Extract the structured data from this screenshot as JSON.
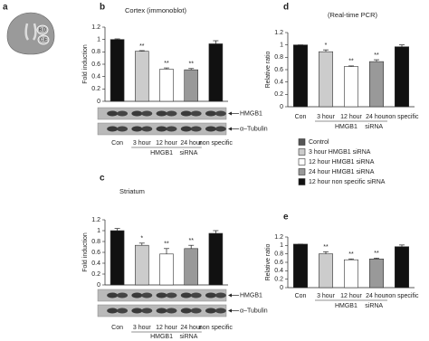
{
  "panel_a": {
    "letter": "a",
    "labels": [
      "B.D",
      "C.E"
    ]
  },
  "legend": {
    "items": [
      {
        "label": "Control",
        "color": "#555555"
      },
      {
        "label": "3 hour HMGB1 siRNA",
        "color": "#cccccc"
      },
      {
        "label": "12 hour HMGB1 siRNA",
        "color": "#ffffff"
      },
      {
        "label": "24 hour HMGB1 siRNA",
        "color": "#999999"
      },
      {
        "label": "12 hour non specific siRNA",
        "color": "#111111"
      }
    ]
  },
  "chart_data": [
    {
      "type": "bar",
      "letter": "b",
      "title": "Cortex (immonoblot)",
      "y_label": "Fold induction",
      "categories": [
        "Con",
        "3 hour",
        "12 hour",
        "24 hour",
        "non specific"
      ],
      "values": [
        1.0,
        0.81,
        0.52,
        0.51,
        0.93
      ],
      "errors": [
        0.01,
        0.01,
        0.02,
        0.02,
        0.05
      ],
      "significance": [
        null,
        "**",
        "**",
        "**",
        null
      ],
      "colors": [
        "#111111",
        "#cccccc",
        "#ffffff",
        "#999999",
        "#111111"
      ],
      "group_labels": [
        "HMGB1",
        "siRNA"
      ],
      "blot_labels": [
        "HMGB1",
        "α–Tubulin"
      ],
      "ylim": [
        0,
        1.2
      ],
      "yticks": [
        0,
        0.2,
        0.4,
        0.6,
        0.8,
        1,
        1.2
      ]
    },
    {
      "type": "bar",
      "letter": "c",
      "title": "Striatum",
      "y_label": "Fold induction",
      "categories": [
        "Con",
        "3 hour",
        "12 hour",
        "24 hour",
        "non specific"
      ],
      "values": [
        1.0,
        0.73,
        0.57,
        0.67,
        0.95
      ],
      "errors": [
        0.04,
        0.04,
        0.1,
        0.06,
        0.05
      ],
      "significance": [
        null,
        "*",
        "**",
        "**",
        null
      ],
      "colors": [
        "#111111",
        "#cccccc",
        "#ffffff",
        "#999999",
        "#111111"
      ],
      "group_labels": [
        "HMGB1",
        "siRNA"
      ],
      "blot_labels": [
        "HMGB1",
        "α–Tubulin"
      ],
      "ylim": [
        0,
        1.2
      ],
      "yticks": [
        0,
        0.2,
        0.4,
        0.6,
        0.8,
        1,
        1.2
      ]
    },
    {
      "type": "bar",
      "letter": "d",
      "title": "(Real-time PCR)",
      "y_label": "Relative ratio",
      "categories": [
        "Con",
        "3 hour",
        "12 hour",
        "24 hour",
        "non specific"
      ],
      "values": [
        1.0,
        0.89,
        0.65,
        0.73,
        0.97
      ],
      "errors": [
        0.0,
        0.03,
        0.01,
        0.03,
        0.03
      ],
      "significance": [
        null,
        "*",
        "**",
        "**",
        null
      ],
      "colors": [
        "#111111",
        "#cccccc",
        "#ffffff",
        "#999999",
        "#111111"
      ],
      "group_labels": [
        "HMGB1",
        "siRNA"
      ],
      "ylim": [
        0,
        1.2
      ],
      "yticks": [
        0,
        0.2,
        0.4,
        0.6,
        0.8,
        1,
        1.2
      ]
    },
    {
      "type": "bar",
      "letter": "e",
      "y_label": "Relative ratio",
      "categories": [
        "Con",
        "3 hour",
        "12 hour",
        "24 hour",
        "non specific"
      ],
      "values": [
        1.03,
        0.8,
        0.66,
        0.68,
        0.97
      ],
      "errors": [
        0.0,
        0.05,
        0.02,
        0.02,
        0.04
      ],
      "significance": [
        null,
        "**",
        "**",
        "**",
        null
      ],
      "colors": [
        "#111111",
        "#cccccc",
        "#ffffff",
        "#999999",
        "#111111"
      ],
      "group_labels": [
        "HMGB1",
        "siRNA"
      ],
      "ylim": [
        0,
        1.2
      ],
      "yticks": [
        0,
        0.2,
        0.4,
        0.6,
        0.8,
        1,
        1.2
      ]
    }
  ]
}
